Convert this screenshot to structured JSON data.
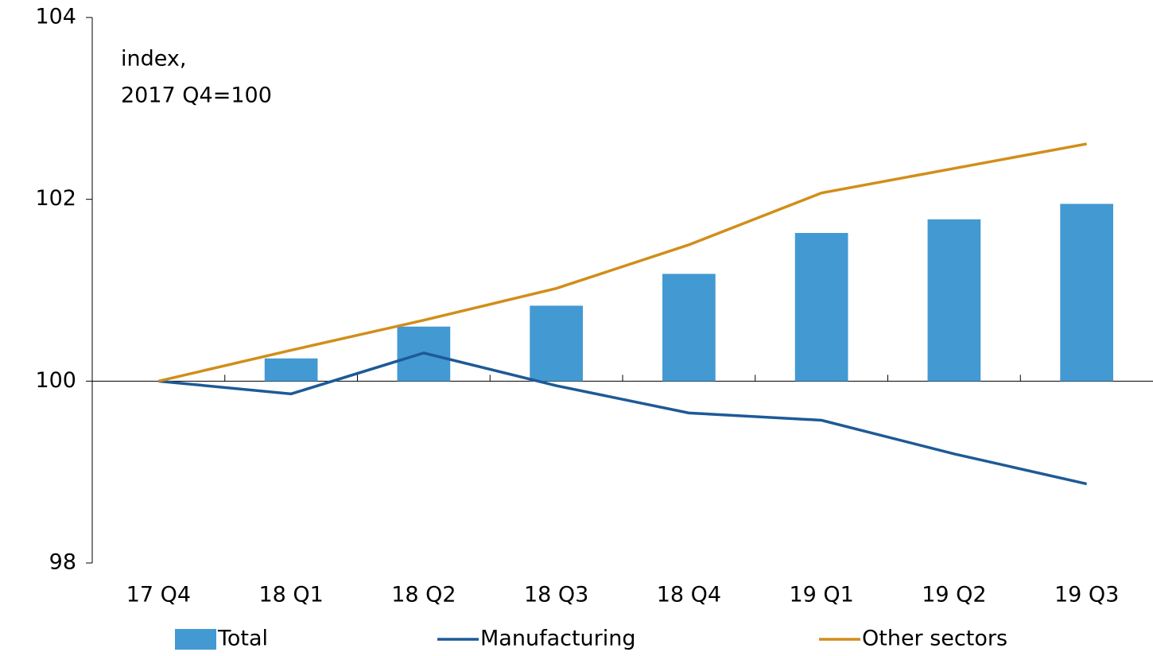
{
  "chart_data": {
    "type": "bar_line",
    "annotation": [
      "index,",
      "2017 Q4=100"
    ],
    "categories": [
      "17 Q4",
      "18 Q1",
      "18 Q2",
      "18 Q3",
      "18 Q4",
      "19 Q1",
      "19 Q2",
      "19 Q3"
    ],
    "series": [
      {
        "name": "Total",
        "type": "bar",
        "color": "#4399d2",
        "values": [
          100,
          100.25,
          100.6,
          100.83,
          101.18,
          101.63,
          101.78,
          101.95
        ]
      },
      {
        "name": "Manufacturing",
        "type": "line",
        "color": "#1d5a96",
        "values": [
          100,
          99.86,
          100.31,
          99.95,
          99.65,
          99.57,
          99.2,
          98.87
        ]
      },
      {
        "name": "Other sectors",
        "type": "line",
        "color": "#d18e1a",
        "values": [
          100,
          100.34,
          100.67,
          101.02,
          101.5,
          102.07,
          102.34,
          102.61
        ]
      }
    ],
    "ylim": [
      98,
      104
    ],
    "yticks": [
      98,
      100,
      102,
      104
    ],
    "x_axis_at": 100
  }
}
